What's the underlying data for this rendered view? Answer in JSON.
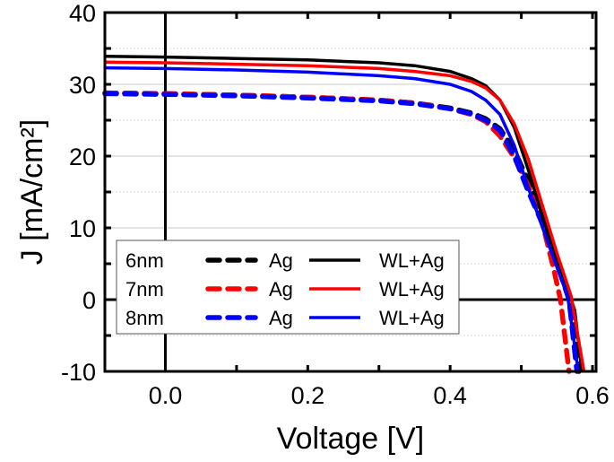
{
  "chart_data": {
    "type": "line",
    "title": "",
    "xlabel": "Voltage [V]",
    "ylabel": "J [mA/cm²]",
    "xlim": [
      -0.085,
      0.605
    ],
    "ylim": [
      -10,
      40
    ],
    "xticks": [
      "0.0",
      "0.2",
      "0.4",
      "0.6"
    ],
    "xtick_values": [
      0.0,
      0.2,
      0.4,
      0.6
    ],
    "yticks": [
      "-10",
      "0",
      "10",
      "20",
      "30",
      "40"
    ],
    "ytick_values": [
      -10,
      0,
      10,
      20,
      30,
      40
    ],
    "grid": "horizontal",
    "legend_placement": "lower-left",
    "legend": {
      "rows": [
        "6nm",
        "7nm",
        "8nm"
      ],
      "dashed_label": "Ag",
      "solid_label": "WL+Ag"
    },
    "series": [
      {
        "name": "6nm Ag",
        "color": "#000000",
        "style": "dashed",
        "x": [
          -0.085,
          0,
          0.1,
          0.2,
          0.3,
          0.35,
          0.4,
          0.43,
          0.45,
          0.47,
          0.49,
          0.51,
          0.53,
          0.55,
          0.57,
          0.581
        ],
        "y": [
          28.8,
          28.7,
          28.5,
          28.2,
          27.8,
          27.4,
          26.7,
          26.0,
          25.2,
          23.8,
          20.8,
          16.5,
          11.5,
          5.5,
          0,
          -10
        ]
      },
      {
        "name": "7nm Ag",
        "color": "#ff0000",
        "style": "dashed",
        "x": [
          -0.085,
          0,
          0.1,
          0.2,
          0.3,
          0.35,
          0.4,
          0.43,
          0.45,
          0.47,
          0.49,
          0.51,
          0.53,
          0.545,
          0.555,
          0.567
        ],
        "y": [
          28.8,
          28.7,
          28.5,
          28.2,
          27.8,
          27.4,
          26.6,
          25.8,
          24.8,
          22.8,
          19.8,
          15.8,
          10.5,
          4.5,
          0,
          -10
        ]
      },
      {
        "name": "8nm Ag",
        "color": "#0000ff",
        "style": "dashed",
        "x": [
          -0.085,
          0,
          0.1,
          0.2,
          0.3,
          0.35,
          0.4,
          0.43,
          0.45,
          0.47,
          0.49,
          0.51,
          0.53,
          0.55,
          0.567,
          0.578
        ],
        "y": [
          28.7,
          28.6,
          28.4,
          28.1,
          27.7,
          27.3,
          26.6,
          25.9,
          25.0,
          23.6,
          20.0,
          15.0,
          10.5,
          5.0,
          0,
          -10
        ]
      },
      {
        "name": "6nm WL+Ag",
        "color": "#000000",
        "style": "solid",
        "x": [
          -0.085,
          0,
          0.1,
          0.2,
          0.3,
          0.35,
          0.4,
          0.43,
          0.45,
          0.47,
          0.49,
          0.51,
          0.53,
          0.55,
          0.565,
          0.575,
          0.585
        ],
        "y": [
          33.9,
          33.8,
          33.6,
          33.4,
          33.0,
          32.6,
          31.8,
          30.8,
          29.8,
          27.8,
          24.0,
          18.0,
          11.5,
          5.5,
          1.5,
          -1.5,
          -10
        ]
      },
      {
        "name": "7nm WL+Ag",
        "color": "#ff0000",
        "style": "solid",
        "x": [
          -0.085,
          0,
          0.1,
          0.2,
          0.3,
          0.35,
          0.4,
          0.43,
          0.45,
          0.47,
          0.49,
          0.51,
          0.53,
          0.55,
          0.57,
          0.588
        ],
        "y": [
          33.1,
          33.0,
          32.8,
          32.6,
          32.2,
          31.8,
          31.2,
          30.4,
          29.5,
          27.8,
          24.5,
          19.5,
          13.0,
          6.5,
          0.5,
          -10
        ]
      },
      {
        "name": "8nm WL+Ag",
        "color": "#0000ff",
        "style": "solid",
        "x": [
          -0.085,
          0,
          0.1,
          0.2,
          0.3,
          0.35,
          0.4,
          0.43,
          0.45,
          0.47,
          0.49,
          0.51,
          0.53,
          0.55,
          0.565,
          0.58
        ],
        "y": [
          32.3,
          32.2,
          32.0,
          31.7,
          31.2,
          30.8,
          30.0,
          29.0,
          27.8,
          25.8,
          21.5,
          15.5,
          10.0,
          4.5,
          0.5,
          -10
        ]
      }
    ]
  }
}
